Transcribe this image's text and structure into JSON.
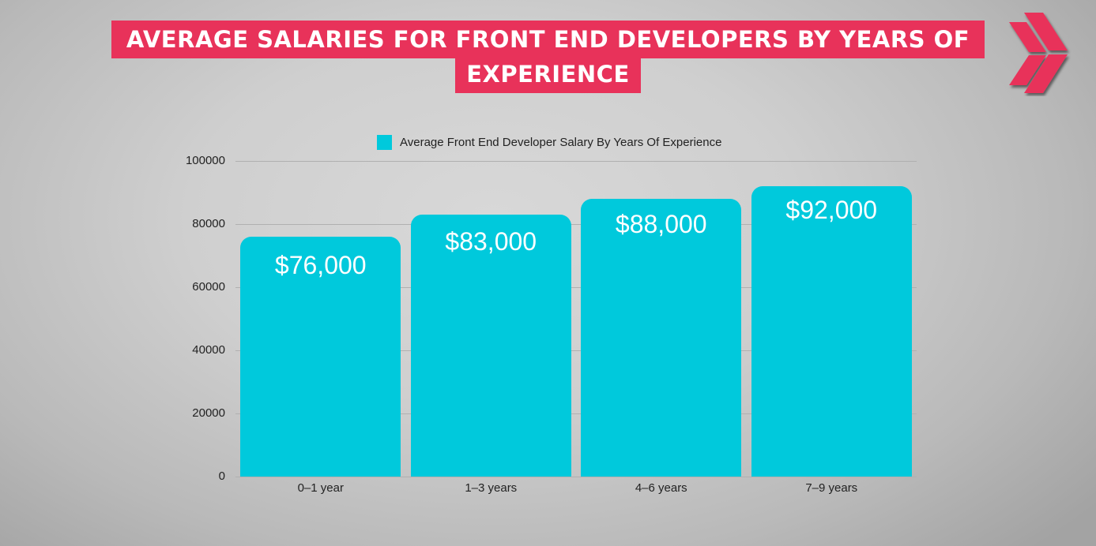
{
  "header": {
    "title_line1": "AVERAGE SALARIES FOR FRONT END DEVELOPERS BY YEARS OF",
    "title_line2": "EXPERIENCE",
    "logo_icon": "double-chevron-right-icon",
    "accent_color": "#e8325a"
  },
  "chart_data": {
    "type": "bar",
    "title": "AVERAGE SALARIES FOR FRONT END DEVELOPERS BY YEARS OF EXPERIENCE",
    "legend": [
      "Average Front End Developer Salary By Years Of Experience"
    ],
    "legend_position": "top",
    "categories": [
      "0–1 year",
      "1–3 years",
      "4–6 years",
      "7–9 years"
    ],
    "values": [
      76000,
      83000,
      88000,
      92000
    ],
    "data_labels": [
      "$76,000",
      "$83,000",
      "$88,000",
      "$92,000"
    ],
    "xlabel": "",
    "ylabel": "",
    "ylim": [
      0,
      100000
    ],
    "yticks": [
      "0",
      "20000",
      "40000",
      "60000",
      "80000",
      "100000"
    ],
    "grid": true,
    "bar_color": "#00c9dc"
  }
}
